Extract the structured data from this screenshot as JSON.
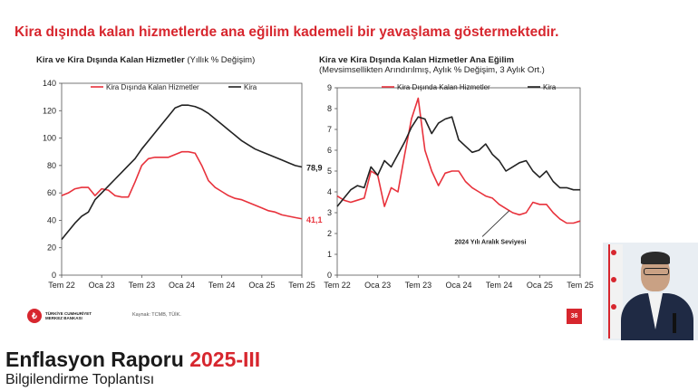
{
  "headline": "Kira dışında kalan hizmetlerde ana eğilim kademeli bir yavaşlama göstermektedir.",
  "chart_data": [
    {
      "type": "line",
      "title": "Kira ve Kira Dışında Kalan Hizmetler",
      "title_unit": "(Yıllık % Değişim)",
      "subtitle": "",
      "legend_position": "top",
      "grid": false,
      "x_ticks": [
        "Tem 22",
        "Oca 23",
        "Tem 23",
        "Oca 24",
        "Tem 24",
        "Oca 25",
        "Tem 25"
      ],
      "ylim": [
        0,
        140
      ],
      "y_ticks": [
        "0",
        "20",
        "40",
        "60",
        "80",
        "100",
        "120",
        "140"
      ],
      "series": [
        {
          "name": "Kira Dışında Kalan Hizmetler",
          "color": "#e8323c",
          "end_label": "41,1",
          "x": [
            0,
            1,
            2,
            3,
            4,
            5,
            6,
            7,
            8,
            9,
            10,
            11,
            12,
            13,
            14,
            15,
            16,
            17,
            18,
            19,
            20,
            21,
            22,
            23,
            24,
            25,
            26,
            27,
            28,
            29,
            30,
            31,
            32,
            33,
            34,
            35,
            36
          ],
          "values": [
            58,
            60,
            63,
            64,
            64,
            58,
            63,
            62,
            58,
            57,
            57,
            68,
            80,
            85,
            86,
            86,
            86,
            88,
            90,
            90,
            89,
            80,
            69,
            64,
            61,
            58,
            56,
            55,
            53,
            51,
            49,
            47,
            46,
            44,
            43,
            42,
            41.1
          ]
        },
        {
          "name": "Kira",
          "color": "#222222",
          "end_label": "78,9",
          "x": [
            0,
            1,
            2,
            3,
            4,
            5,
            6,
            7,
            8,
            9,
            10,
            11,
            12,
            13,
            14,
            15,
            16,
            17,
            18,
            19,
            20,
            21,
            22,
            23,
            24,
            25,
            26,
            27,
            28,
            29,
            30,
            31,
            32,
            33,
            34,
            35,
            36
          ],
          "values": [
            26,
            32,
            38,
            43,
            46,
            55,
            60,
            65,
            70,
            75,
            80,
            85,
            92,
            98,
            104,
            110,
            116,
            122,
            124,
            124,
            123,
            121,
            118,
            114,
            110,
            106,
            102,
            98,
            95,
            92,
            90,
            88,
            86,
            84,
            82,
            80,
            78.9
          ]
        }
      ]
    },
    {
      "type": "line",
      "title": "Kira ve Kira Dışında Kalan Hizmetler Ana Eğilim",
      "subtitle": "(Mevsimsellikten Arındırılmış, Aylık % Değişim, 3 Aylık Ort.)",
      "legend_position": "top",
      "grid": false,
      "x_ticks": [
        "Tem 22",
        "Oca 23",
        "Tem 23",
        "Oca 24",
        "Tem 24",
        "Oca 25",
        "Tem 25"
      ],
      "ylim": [
        0,
        9
      ],
      "y_ticks": [
        "0",
        "1",
        "2",
        "3",
        "4",
        "5",
        "6",
        "7",
        "8",
        "9"
      ],
      "annotation": "2024 Yılı Aralık Seviyesi",
      "series": [
        {
          "name": "Kira Dışında Kalan Hizmetler",
          "color": "#e8323c",
          "x": [
            0,
            1,
            2,
            3,
            4,
            5,
            6,
            7,
            8,
            9,
            10,
            11,
            12,
            13,
            14,
            15,
            16,
            17,
            18,
            19,
            20,
            21,
            22,
            23,
            24,
            25,
            26,
            27,
            28,
            29,
            30,
            31,
            32,
            33,
            34,
            35,
            36
          ],
          "values": [
            3.8,
            3.6,
            3.5,
            3.6,
            3.7,
            5.0,
            4.8,
            3.3,
            4.2,
            4.0,
            5.8,
            7.5,
            8.5,
            6.0,
            5.0,
            4.3,
            4.9,
            5.0,
            5.0,
            4.5,
            4.2,
            4.0,
            3.8,
            3.7,
            3.4,
            3.2,
            3.0,
            2.9,
            3.0,
            3.5,
            3.4,
            3.4,
            3.0,
            2.7,
            2.5,
            2.5,
            2.6
          ]
        },
        {
          "name": "Kira",
          "color": "#222222",
          "x": [
            0,
            1,
            2,
            3,
            4,
            5,
            6,
            7,
            8,
            9,
            10,
            11,
            12,
            13,
            14,
            15,
            16,
            17,
            18,
            19,
            20,
            21,
            22,
            23,
            24,
            25,
            26,
            27,
            28,
            29,
            30,
            31,
            32,
            33,
            34,
            35,
            36
          ],
          "values": [
            3.3,
            3.7,
            4.1,
            4.3,
            4.2,
            5.2,
            4.8,
            5.5,
            5.2,
            5.8,
            6.4,
            7.1,
            7.6,
            7.5,
            6.8,
            7.3,
            7.5,
            7.6,
            6.5,
            6.2,
            5.9,
            6.0,
            6.3,
            5.8,
            5.5,
            5.0,
            5.2,
            5.4,
            5.5,
            5.0,
            4.7,
            5.0,
            4.5,
            4.2,
            4.2,
            4.1,
            4.1
          ]
        }
      ]
    }
  ],
  "footer": {
    "logo_line1": "TÜRKİYE CUMHURİYET",
    "logo_line2": "MERKEZ BANKASI",
    "source": "Kaynak: TCMB, TÜİK.",
    "page_number": "36"
  },
  "report": {
    "title": "Enflasyon Raporu",
    "title_highlight": "2025-III",
    "subtitle": "Bilgilendirme Toplantısı"
  },
  "colors": {
    "accent": "#d7262e",
    "series_red": "#e8323c",
    "series_black": "#222222"
  }
}
